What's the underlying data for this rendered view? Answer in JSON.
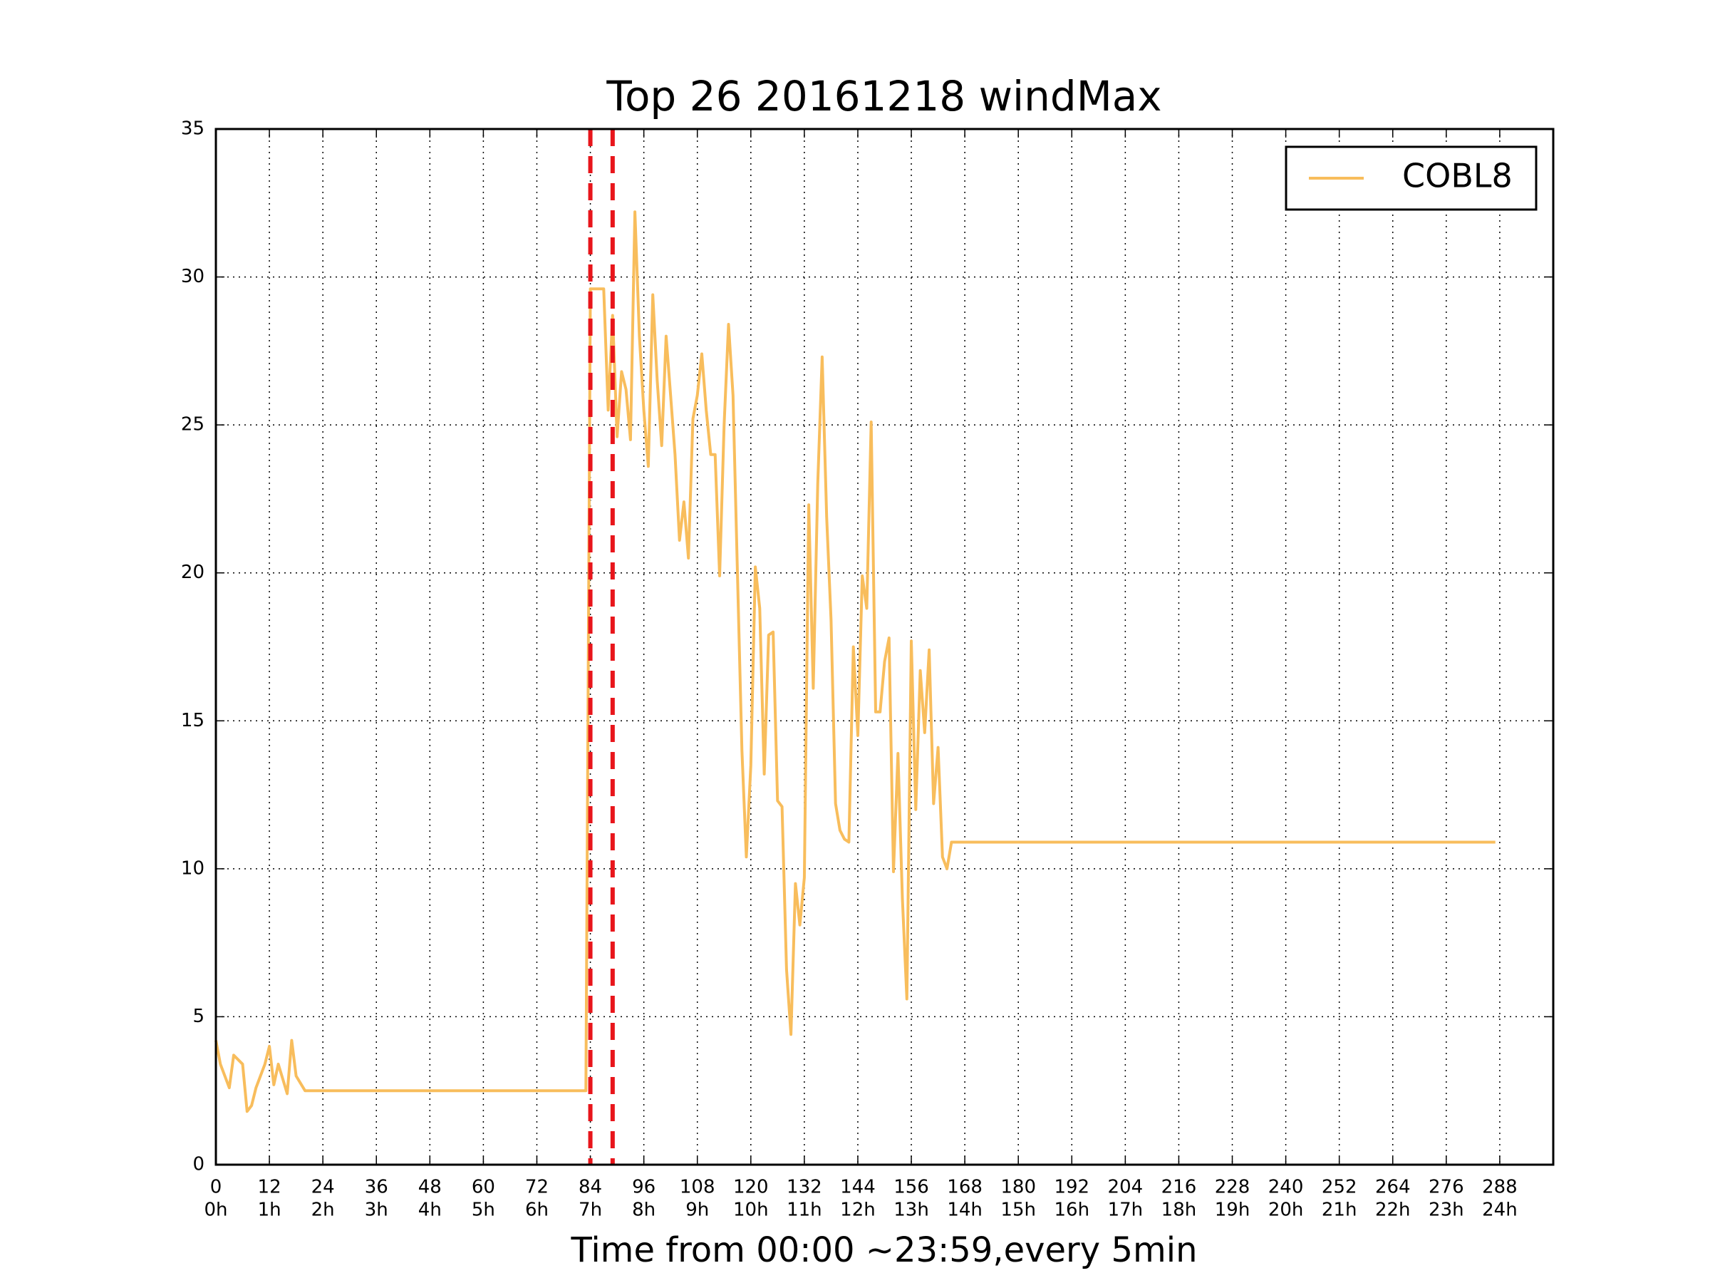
{
  "chart_data": {
    "type": "line",
    "title": "Top 26 20161218 windMax",
    "xlabel": "Time from 00:00 ~23:59,every 5min",
    "xlim": [
      0,
      300
    ],
    "ylim": [
      0,
      35
    ],
    "xticks": [
      0,
      12,
      24,
      36,
      48,
      60,
      72,
      84,
      96,
      108,
      120,
      132,
      144,
      156,
      168,
      180,
      192,
      204,
      216,
      228,
      240,
      252,
      264,
      276,
      288
    ],
    "xtick_sublabels": [
      "0h",
      "1h",
      "2h",
      "3h",
      "4h",
      "5h",
      "6h",
      "7h",
      "8h",
      "9h",
      "10h",
      "11h",
      "12h",
      "13h",
      "14h",
      "15h",
      "16h",
      "17h",
      "18h",
      "19h",
      "20h",
      "21h",
      "22h",
      "23h",
      "24h"
    ],
    "yticks": [
      0,
      5,
      10,
      15,
      20,
      25,
      30,
      35
    ],
    "grid": true,
    "legend": "upper right",
    "vlines": [
      84,
      89
    ],
    "vline_color": "#e8151b",
    "x": [
      0,
      1,
      3,
      4,
      6,
      7,
      8,
      9,
      11,
      12,
      13,
      14,
      16,
      17,
      18,
      20,
      83,
      84,
      85,
      87,
      88,
      89,
      90,
      91,
      92,
      93,
      94,
      95,
      96,
      97,
      98,
      99,
      100,
      101,
      102,
      103,
      104,
      105,
      106,
      107,
      108,
      109,
      110,
      111,
      112,
      113,
      114,
      115,
      116,
      117,
      118,
      119,
      120,
      121,
      122,
      123,
      124,
      125,
      126,
      127,
      128,
      129,
      130,
      131,
      132,
      133,
      134,
      135,
      136,
      137,
      138,
      139,
      140,
      141,
      142,
      143,
      144,
      145,
      146,
      147,
      148,
      149,
      150,
      151,
      152,
      153,
      154,
      155,
      156,
      157,
      158,
      159,
      160,
      161,
      162,
      163,
      164,
      165,
      287
    ],
    "series": [
      {
        "name": "COBL8",
        "color": "#f8bd5c",
        "values": [
          4.2,
          3.4,
          2.6,
          3.7,
          3.4,
          1.8,
          2.0,
          2.6,
          3.4,
          4.0,
          2.7,
          3.4,
          2.4,
          4.2,
          3.0,
          2.5,
          2.5,
          29.6,
          29.6,
          29.6,
          25.5,
          28.7,
          24.6,
          26.8,
          26.2,
          24.5,
          32.2,
          28.0,
          25.5,
          23.6,
          29.4,
          26.5,
          24.3,
          28.0,
          26.0,
          24.0,
          21.1,
          22.4,
          20.5,
          25.2,
          26.0,
          27.4,
          25.5,
          24.0,
          24.0,
          19.9,
          25.0,
          28.4,
          26.0,
          20.0,
          14.0,
          10.4,
          13.5,
          20.2,
          18.8,
          13.2,
          17.9,
          18.0,
          12.3,
          12.1,
          6.6,
          4.4,
          9.5,
          8.1,
          9.7,
          22.3,
          16.1,
          23.0,
          27.3,
          21.9,
          18.4,
          12.2,
          11.3,
          11.0,
          10.9,
          17.5,
          14.5,
          19.9,
          18.8,
          25.1,
          15.3,
          15.3,
          17.0,
          17.8,
          9.9,
          13.9,
          9.0,
          5.6,
          17.7,
          12.0,
          16.7,
          14.6,
          17.4,
          12.2,
          14.1,
          10.4,
          10.0,
          10.9,
          10.9
        ]
      }
    ]
  }
}
